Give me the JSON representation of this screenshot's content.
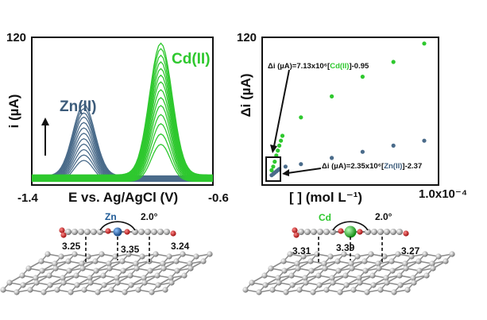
{
  "colors": {
    "zn": "#4a6b8a",
    "cd": "#2ec82e",
    "axis": "#111111",
    "graphene": "#b8b8b8",
    "oxygen": "#c81e1e",
    "zn_atom": "#1e5a96",
    "cd_atom": "#22aa22"
  },
  "left_panel": {
    "y_tick_top": "120",
    "y_label": "i (µA)",
    "x_tick_left": "-1.4",
    "x_tick_right": "-0.6",
    "x_label": "E vs. Ag/AgCl (V)",
    "zn_label": "Zn(II)",
    "cd_label": "Cd(II)",
    "arrow_icon": "up-arrow-icon"
  },
  "right_panel": {
    "y_tick_top": "120",
    "y_label": "Δi (µA)",
    "x_label": "[  ] (mol L⁻¹)",
    "x_tick_right": "1.0x10⁻⁴",
    "cd_eq_prefix": "Δi (µA)=7.13x10⁶[",
    "cd_eq_species": "Cd(II)",
    "cd_eq_suffix": "]-0.95",
    "zn_eq_prefix": "Δi (µA)=2.35x10⁶[",
    "zn_eq_species": "Zn(II)",
    "zn_eq_suffix": "]-2.37"
  },
  "left_structure": {
    "metal_label": "Zn",
    "angle_label": "2.0°",
    "dist_1": "3.25",
    "dist_2": "3.35",
    "dist_3": "3.24"
  },
  "right_structure": {
    "metal_label": "Cd",
    "angle_label": "2.0°",
    "dist_1": "3.31",
    "dist_2": "3.39",
    "dist_3": "3.27"
  },
  "chart_data": [
    {
      "type": "line",
      "x_range": [
        -1.4,
        -0.6
      ],
      "ylim": [
        0,
        120
      ],
      "series": [
        {
          "name": "Zn(II)",
          "peak_potential": -1.17,
          "peak_heights": [
            17,
            21,
            25,
            29,
            33,
            37,
            41,
            45,
            49,
            52,
            55,
            58
          ]
        },
        {
          "name": "Cd(II)",
          "peak_potential": -0.83,
          "peak_heights": [
            30,
            38,
            46,
            53,
            60,
            66,
            72,
            78,
            83,
            88,
            93,
            98,
            103,
            107
          ]
        }
      ]
    },
    {
      "type": "scatter",
      "xlim": [
        0,
        0.0001
      ],
      "ylim": [
        0,
        120
      ],
      "series": [
        {
          "name": "Cd(II)",
          "x": [
            1e-06,
            2e-06,
            3e-06,
            4e-06,
            5e-06,
            6e-06,
            7e-06,
            8e-06,
            2e-05,
            4e-05,
            6e-05,
            8e-05,
            0.0001
          ],
          "y": [
            12,
            15,
            19,
            24,
            28,
            32,
            36,
            40,
            55,
            72,
            88,
            100,
            115
          ]
        },
        {
          "name": "Zn(II)",
          "x": [
            1e-06,
            2e-06,
            3e-06,
            4e-06,
            5e-06,
            6e-06,
            1e-05,
            2e-05,
            4e-05,
            6e-05,
            8e-05,
            0.0001
          ],
          "y": [
            8,
            9,
            10,
            11,
            12,
            13,
            15,
            17,
            22,
            27,
            32,
            36
          ]
        }
      ]
    }
  ]
}
